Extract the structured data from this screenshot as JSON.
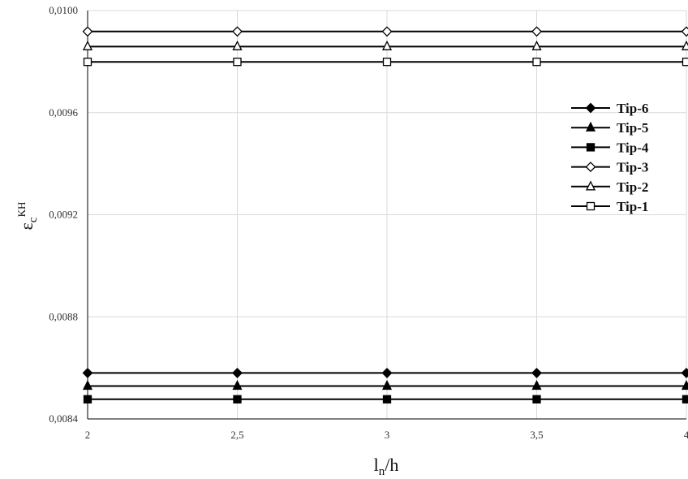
{
  "chart_data": {
    "type": "line",
    "title": "",
    "xlabel": {
      "main": "l",
      "sub": "n",
      "rest": "/h"
    },
    "ylabel": {
      "main": "ε",
      "sub": "c",
      "sup": "KH"
    },
    "x": [
      2,
      2.5,
      3,
      3.5,
      4
    ],
    "x_tick_labels": [
      "2",
      "2,5",
      "3",
      "3,5",
      "4"
    ],
    "xlim": [
      2,
      4
    ],
    "ylim": [
      0.0084,
      0.01
    ],
    "y_tick_values": [
      0.0084,
      0.0088,
      0.0092,
      0.0096,
      0.01
    ],
    "y_tick_labels": [
      "0,0084",
      "0,0088",
      "0,0092",
      "0,0096",
      "0,0100"
    ],
    "grid": true,
    "legend_position": "right",
    "series": [
      {
        "name": "Tip-6",
        "marker": "diamond-filled",
        "values": [
          0.00858,
          0.00858,
          0.00858,
          0.00858,
          0.00858
        ]
      },
      {
        "name": "Tip-5",
        "marker": "triangle-filled",
        "values": [
          0.008529,
          0.008529,
          0.008529,
          0.008529,
          0.008529
        ]
      },
      {
        "name": "Tip-4",
        "marker": "square-filled",
        "values": [
          0.008477,
          0.008477,
          0.008477,
          0.008477,
          0.008477
        ]
      },
      {
        "name": "Tip-3",
        "marker": "diamond-open",
        "values": [
          0.009918,
          0.009918,
          0.009918,
          0.009918,
          0.009918
        ]
      },
      {
        "name": "Tip-2",
        "marker": "triangle-open",
        "values": [
          0.009859,
          0.009859,
          0.009859,
          0.009859,
          0.009859
        ]
      },
      {
        "name": "Tip-1",
        "marker": "square-open",
        "values": [
          0.009799,
          0.009799,
          0.009799,
          0.009799,
          0.009799
        ]
      }
    ],
    "line_color": "#000000",
    "grid_color": "#d9d9d9"
  }
}
